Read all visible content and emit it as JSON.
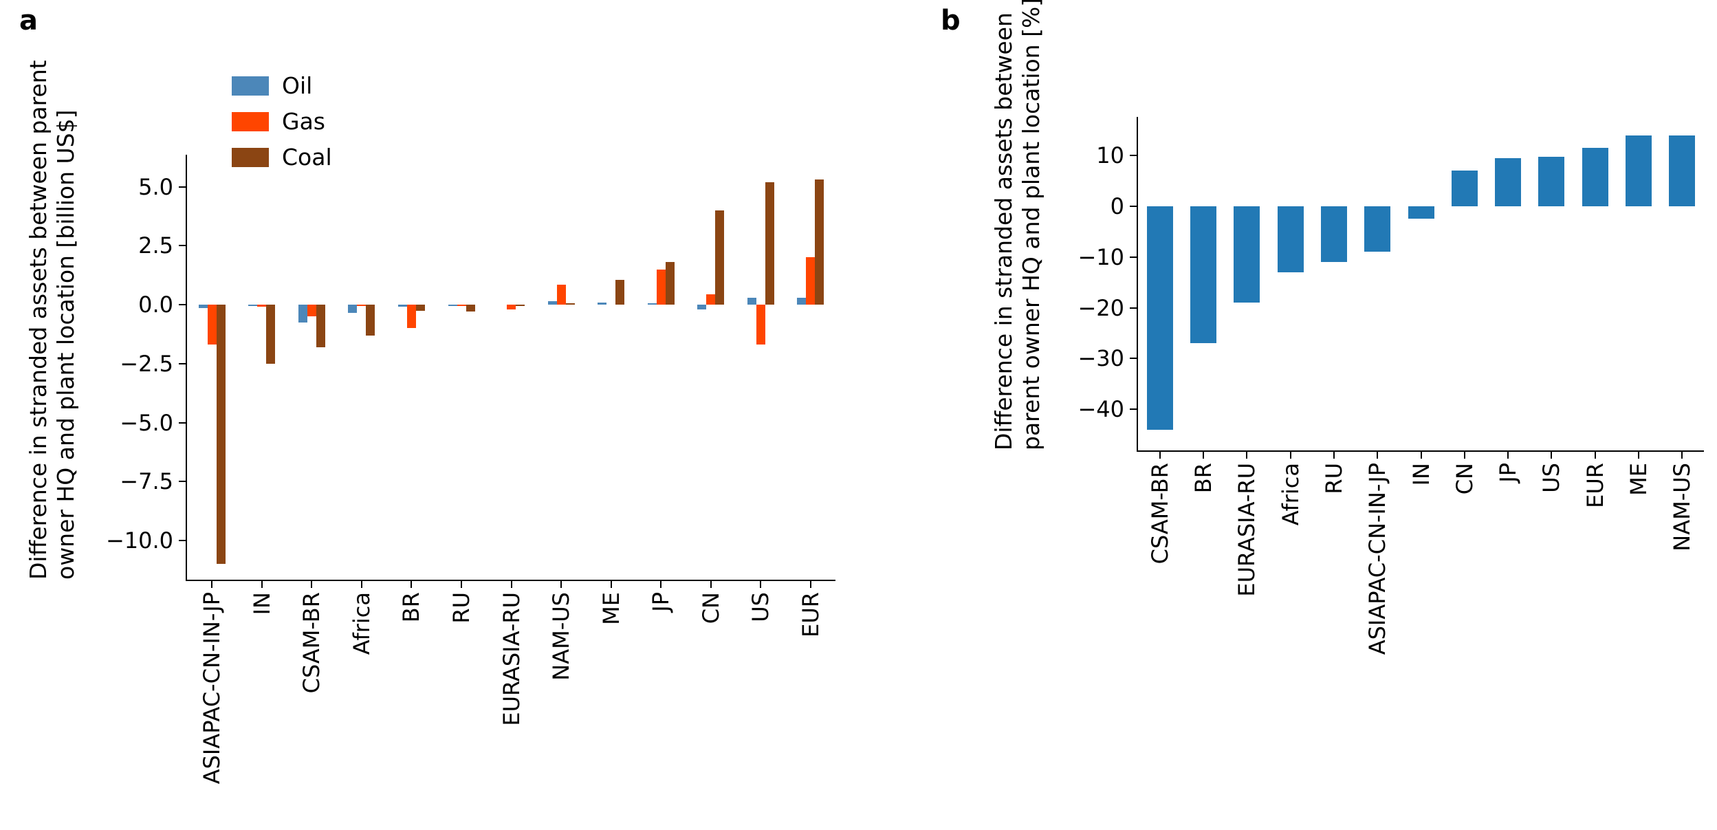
{
  "panels": {
    "a": {
      "letter": "a",
      "ylabel_lines": [
        "Difference in stranded assets between parent",
        "owner HQ and plant location [billion US$]"
      ]
    },
    "b": {
      "letter": "b",
      "ylabel_lines": [
        "Difference in stranded assets between",
        "parent owner HQ and plant location [%]"
      ]
    }
  },
  "chart_data": [
    {
      "id": "a",
      "type": "bar",
      "title": "",
      "ylabel": "Difference in stranded assets between parent owner HQ and plant location [billion US$]",
      "xlabel": "",
      "categories": [
        "ASIAPAC-CN-IN-JP",
        "IN",
        "CSAM-BR",
        "Africa",
        "BR",
        "RU",
        "EURASIA-RU",
        "NAM-US",
        "ME",
        "JP",
        "CN",
        "US",
        "EUR"
      ],
      "series": [
        {
          "name": "Oil",
          "color": "#4C87B9",
          "values": [
            -0.15,
            -0.05,
            -0.75,
            -0.35,
            -0.1,
            -0.05,
            0.0,
            0.15,
            0.1,
            0.05,
            -0.2,
            0.3,
            0.3
          ]
        },
        {
          "name": "Gas",
          "color": "#FF4500",
          "values": [
            -1.7,
            -0.1,
            -0.5,
            -0.05,
            -1.0,
            -0.05,
            -0.2,
            0.85,
            0.0,
            1.5,
            0.45,
            -1.7,
            2.0
          ]
        },
        {
          "name": "Coal",
          "color": "#8B4513",
          "values": [
            -11.0,
            -2.5,
            -1.8,
            -1.3,
            -0.25,
            -0.3,
            -0.05,
            0.05,
            1.05,
            1.8,
            4.0,
            5.2,
            5.3
          ]
        }
      ],
      "ytick_values": [
        5.0,
        2.5,
        0.0,
        -2.5,
        -5.0,
        -7.5,
        -10.0
      ],
      "ytick_labels": [
        "5.0",
        "2.5",
        "0.0",
        "−2.5",
        "−5.0",
        "−7.5",
        "−10.0"
      ],
      "ylim": [
        -11.8,
        6.3
      ],
      "grid": false,
      "legend_position": "upper left"
    },
    {
      "id": "b",
      "type": "bar",
      "title": "",
      "ylabel": "Difference in stranded assets between parent owner HQ and plant location [%]",
      "xlabel": "",
      "color": "#2279B5",
      "categories": [
        "CSAM-BR",
        "BR",
        "EURASIA-RU",
        "Africa",
        "RU",
        "ASIAPAC-CN-IN-JP",
        "IN",
        "CN",
        "JP",
        "US",
        "EUR",
        "ME",
        "NAM-US"
      ],
      "values": [
        -44,
        -27,
        -19,
        -13,
        -11,
        -9,
        -2.5,
        7,
        9.5,
        9.8,
        11.5,
        14,
        14
      ],
      "ytick_values": [
        10,
        0,
        -10,
        -20,
        -30,
        -40
      ],
      "ytick_labels": [
        "10",
        "0",
        "−10",
        "−20",
        "−30",
        "−40"
      ],
      "ylim": [
        -48,
        17
      ],
      "grid": false,
      "legend_position": "none"
    }
  ]
}
